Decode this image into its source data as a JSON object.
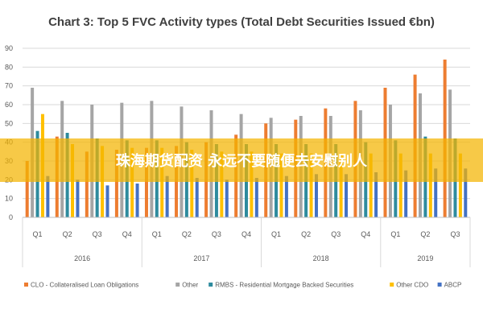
{
  "chart_data": {
    "type": "bar",
    "title": "Chart 3: Top 5 FVC Activity types (Total Debt Securities Issued €bn)",
    "xlabel": "",
    "ylabel": "",
    "ylim": [
      0,
      90
    ],
    "yticks": [
      0,
      10,
      20,
      30,
      40,
      50,
      60,
      70,
      80,
      90
    ],
    "grid": true,
    "legend_position": "bottom",
    "categories": [
      "Q1",
      "Q2",
      "Q3",
      "Q4",
      "Q1",
      "Q2",
      "Q3",
      "Q4",
      "Q1",
      "Q2",
      "Q3",
      "Q4",
      "Q1",
      "Q2",
      "Q3"
    ],
    "groups": [
      {
        "label": "2016",
        "count": 4
      },
      {
        "label": "2017",
        "count": 4
      },
      {
        "label": "2018",
        "count": 4
      },
      {
        "label": "2019",
        "count": 3
      }
    ],
    "series": [
      {
        "name": "CLO - Collateralised Loan Obligations",
        "color": "#ED7D31",
        "values": [
          30,
          43,
          35,
          36,
          37,
          38,
          40,
          44,
          50,
          52,
          58,
          62,
          69,
          76,
          84
        ]
      },
      {
        "name": "Other",
        "color": "#A5A5A5",
        "values": [
          69,
          62,
          60,
          61,
          62,
          59,
          57,
          55,
          53,
          54,
          54,
          57,
          60,
          66,
          68
        ]
      },
      {
        "name": "RMBS - Residential Mortgage Backed Securities",
        "color": "#2E8B9E",
        "values": [
          46,
          45,
          42,
          41,
          41,
          40,
          39,
          39,
          39,
          39,
          39,
          40,
          41,
          43,
          42
        ]
      },
      {
        "name": "Other CDO",
        "color": "#FFC000",
        "values": [
          55,
          39,
          38,
          37,
          37,
          36,
          35,
          35,
          34,
          34,
          34,
          34,
          34,
          34,
          34
        ]
      },
      {
        "name": "ABCP",
        "color": "#4472C4",
        "values": [
          22,
          20,
          17,
          18,
          22,
          21,
          20,
          21,
          22,
          23,
          23,
          24,
          25,
          26,
          26
        ]
      }
    ]
  },
  "watermark": "珠海期货配资 永远不要随便去安慰别人"
}
